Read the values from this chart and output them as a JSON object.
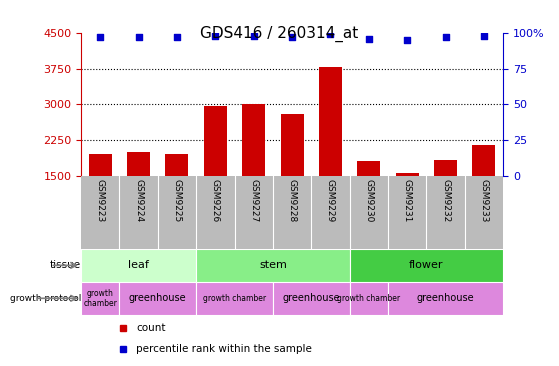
{
  "title": "GDS416 / 260314_at",
  "samples": [
    "GSM9223",
    "GSM9224",
    "GSM9225",
    "GSM9226",
    "GSM9227",
    "GSM9228",
    "GSM9229",
    "GSM9230",
    "GSM9231",
    "GSM9232",
    "GSM9233"
  ],
  "counts": [
    1950,
    2000,
    1950,
    2960,
    3000,
    2800,
    3780,
    1800,
    1560,
    1840,
    2150
  ],
  "percentiles": [
    97,
    97,
    97,
    98,
    98,
    97,
    99,
    96,
    95,
    97,
    98
  ],
  "ylim_left": [
    1500,
    4500
  ],
  "ylim_right": [
    0,
    100
  ],
  "yticks_left": [
    1500,
    2250,
    3000,
    3750,
    4500
  ],
  "yticks_right": [
    0,
    25,
    50,
    75,
    100
  ],
  "bar_color": "#cc0000",
  "dot_color": "#0000cc",
  "tissue_groups": [
    {
      "label": "leaf",
      "start": 0,
      "end": 3,
      "color": "#ccffcc"
    },
    {
      "label": "stem",
      "start": 3,
      "end": 7,
      "color": "#88ee88"
    },
    {
      "label": "flower",
      "start": 7,
      "end": 11,
      "color": "#44cc44"
    }
  ],
  "growth_groups": [
    {
      "label": "growth\nchamber",
      "start": 0,
      "end": 1,
      "color": "#ee88ee"
    },
    {
      "label": "greenhouse",
      "start": 1,
      "end": 3,
      "color": "#ee88ee"
    },
    {
      "label": "growth chamber",
      "start": 3,
      "end": 5,
      "color": "#ee88ee"
    },
    {
      "label": "greenhouse",
      "start": 5,
      "end": 7,
      "color": "#ee88ee"
    },
    {
      "label": "growth chamber",
      "start": 7,
      "end": 8,
      "color": "#ee88ee"
    },
    {
      "label": "greenhouse",
      "start": 8,
      "end": 11,
      "color": "#ee88ee"
    }
  ],
  "tick_label_color": "#cc0000",
  "right_tick_color": "#0000cc",
  "sample_bg_color": "#bbbbbb",
  "tissue_border_color": "#aaaaaa",
  "left_label_color": "#888888"
}
